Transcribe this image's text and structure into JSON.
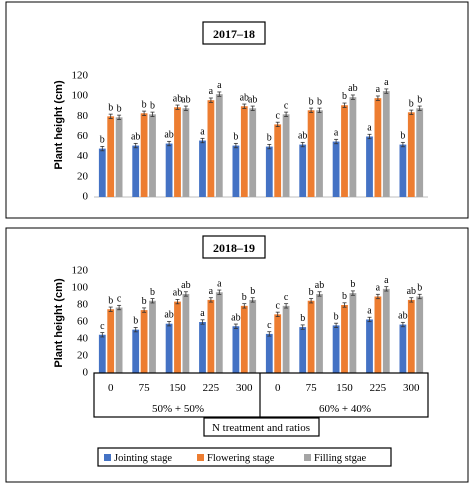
{
  "chart_data": {
    "type": "bar",
    "categories": [
      "0",
      "75",
      "150",
      "225",
      "300",
      "0",
      "75",
      "150",
      "225",
      "300"
    ],
    "group_labels": [
      "50% + 50%",
      "60% + 40%"
    ],
    "xlabel": "N treatment and ratios",
    "ylabel": "Plant height (cm)",
    "ylim": [
      0,
      120
    ],
    "yticks": [
      0,
      20,
      40,
      60,
      80,
      100,
      120
    ],
    "colors": [
      "#4472c4",
      "#ed7d31",
      "#a5a5a5"
    ],
    "legend": [
      "Jointing stage",
      "Flowering stage",
      "Filling stgae"
    ],
    "legend_position": "bottom",
    "panels": [
      {
        "title": "2017–18",
        "series": [
          {
            "name": "Jointing stage",
            "values": [
              48,
              51,
              53,
              56,
              51,
              50,
              52,
              55,
              60,
              52
            ],
            "letters": [
              "b",
              "ab",
              "ab",
              "a",
              "b",
              "b",
              "ab",
              "a",
              "a",
              "b"
            ]
          },
          {
            "name": "Flowering stage",
            "values": [
              80,
              83,
              89,
              96,
              90,
              72,
              86,
              91,
              98,
              84
            ],
            "letters": [
              "b",
              "b",
              "ab",
              "a",
              "ab",
              "c",
              "b",
              "b",
              "a",
              "b"
            ]
          },
          {
            "name": "Filling stgae",
            "values": [
              79,
              82,
              88,
              102,
              88,
              82,
              86,
              99,
              105,
              88
            ],
            "letters": [
              "b",
              "b",
              "ab",
              "a",
              "ab",
              "c",
              "b",
              "ab",
              "a",
              "b"
            ]
          }
        ]
      },
      {
        "title": "2018–19",
        "series": [
          {
            "name": "Jointing stage",
            "values": [
              45,
              51,
              58,
              60,
              55,
              46,
              54,
              56,
              63,
              57
            ],
            "letters": [
              "c",
              "b",
              "ab",
              "a",
              "ab",
              "c",
              "b",
              "b",
              "a",
              "ab"
            ]
          },
          {
            "name": "Flowering stage",
            "values": [
              75,
              74,
              84,
              86,
              79,
              69,
              85,
              80,
              90,
              86
            ],
            "letters": [
              "b",
              "b",
              "ab",
              "a",
              "b",
              "c",
              "b",
              "b",
              "a",
              "ab"
            ]
          },
          {
            "name": "Filling stgae",
            "values": [
              77,
              85,
              93,
              95,
              86,
              79,
              93,
              94,
              99,
              90
            ],
            "letters": [
              "c",
              "b",
              "ab",
              "a",
              "b",
              "c",
              "ab",
              "b",
              "a",
              "b"
            ]
          }
        ]
      }
    ]
  }
}
